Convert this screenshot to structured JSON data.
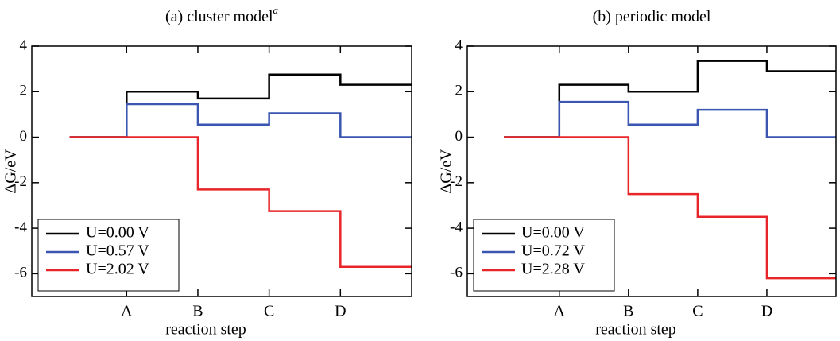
{
  "chart_data": [
    {
      "type": "step",
      "title": "(a) cluster model",
      "title_sup": "a",
      "x_label": "reaction step",
      "y_label": "ΔG/eV",
      "x": [
        0.2,
        1,
        2,
        3,
        4
      ],
      "xlim": [
        -0.33,
        5
      ],
      "xticks": [
        {
          "value": 1,
          "label": "A"
        },
        {
          "value": 2,
          "label": "B"
        },
        {
          "value": 3,
          "label": "C"
        },
        {
          "value": 4,
          "label": "D"
        }
      ],
      "ylim": [
        -7,
        4
      ],
      "yticks": [
        -6,
        -4,
        -2,
        0,
        2,
        4
      ],
      "legend": "lower left",
      "series": [
        {
          "name": "U=0.00 V",
          "color": "#000000",
          "values": [
            0,
            2.0,
            1.7,
            2.75,
            2.3
          ]
        },
        {
          "name": "U=0.57 V",
          "color": "#3a56b0",
          "values": [
            0,
            1.45,
            0.55,
            1.05,
            0.0
          ]
        },
        {
          "name": "U=2.02 V",
          "color": "#e8262a",
          "values": [
            0,
            0,
            -2.3,
            -3.25,
            -5.7
          ]
        }
      ]
    },
    {
      "type": "step",
      "title": "(b) periodic model",
      "x_label": "reaction step",
      "y_label": "ΔG/eV",
      "x": [
        0.2,
        1,
        2,
        3,
        4
      ],
      "xlim": [
        -0.33,
        5
      ],
      "xticks": [
        {
          "value": 1,
          "label": "A"
        },
        {
          "value": 2,
          "label": "B"
        },
        {
          "value": 3,
          "label": "C"
        },
        {
          "value": 4,
          "label": "D"
        }
      ],
      "ylim": [
        -7,
        4
      ],
      "yticks": [
        -6,
        -4,
        -2,
        0,
        2,
        4
      ],
      "legend": "lower left",
      "series": [
        {
          "name": "U=0.00 V",
          "color": "#000000",
          "values": [
            0,
            2.3,
            2.0,
            3.35,
            2.9
          ]
        },
        {
          "name": "U=0.72 V",
          "color": "#3a56b0",
          "values": [
            0,
            1.55,
            0.55,
            1.2,
            0.0
          ]
        },
        {
          "name": "U=2.28 V",
          "color": "#e8262a",
          "values": [
            0,
            0,
            -2.5,
            -3.5,
            -6.2
          ]
        }
      ]
    }
  ]
}
